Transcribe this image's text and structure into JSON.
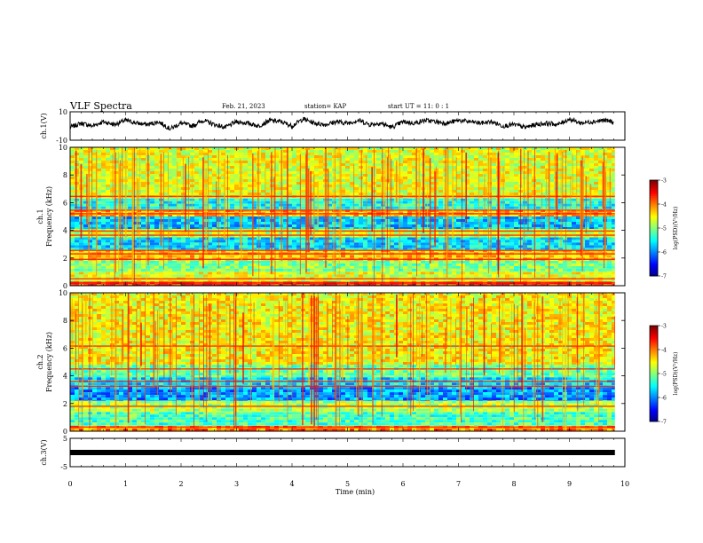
{
  "header": {
    "title": "VLF Spectra",
    "date": "Feb. 21, 2023",
    "station": "station= KAP",
    "start": "start  UT  =   11: 0  : 1"
  },
  "chart_data": [
    {
      "id": "ch1-waveform",
      "type": "line",
      "ylabel": "ch.1(V)",
      "xlim": [
        0,
        10
      ],
      "ylim": [
        -10,
        10
      ],
      "yticks": [
        "10",
        "-10"
      ],
      "x_end": 9.82,
      "series": [
        {
          "color": "#000000",
          "x": [
            0,
            0.2,
            0.4,
            0.6,
            0.8,
            1.0,
            1.2,
            1.4,
            1.6,
            1.8,
            2.0,
            2.2,
            2.4,
            2.6,
            2.8,
            3.0,
            3.2,
            3.4,
            3.6,
            3.8,
            4.0,
            4.2,
            4.4,
            4.6,
            4.8,
            5.0,
            5.2,
            5.4,
            5.6,
            5.8,
            6.0,
            6.2,
            6.4,
            6.6,
            6.8,
            7.0,
            7.2,
            7.4,
            7.6,
            7.8,
            8.0,
            8.2,
            8.4,
            8.6,
            8.8,
            9.0,
            9.2,
            9.4,
            9.6,
            9.8
          ],
          "y": [
            -1,
            2,
            0,
            3,
            1,
            4,
            2,
            1,
            3,
            -2,
            2,
            0,
            4,
            1,
            -1,
            3,
            2,
            0,
            4,
            3,
            0,
            5,
            2,
            1,
            3,
            2,
            4,
            1,
            2,
            -1,
            3,
            2,
            4,
            3,
            2,
            4,
            3,
            2,
            3,
            0,
            1,
            -1,
            1,
            2,
            1,
            5,
            2,
            3,
            4,
            3
          ]
        }
      ]
    },
    {
      "id": "ch1-spectrogram",
      "type": "heatmap",
      "ylabel_top": "ch.1",
      "ylabel": "Frequency (kHz)",
      "xlim": [
        0,
        10
      ],
      "ylim": [
        0,
        10
      ],
      "yticks": [
        "0",
        "2",
        "4",
        "6",
        "8",
        "10"
      ],
      "x_end": 9.82,
      "bands": [
        {
          "kHz": [
            0.0,
            0.3
          ],
          "level": -3.6
        },
        {
          "kHz": [
            0.3,
            1.0
          ],
          "level": -4.6
        },
        {
          "kHz": [
            1.0,
            1.8
          ],
          "level": -5.0
        },
        {
          "kHz": [
            1.8,
            2.6
          ],
          "level": -4.3
        },
        {
          "kHz": [
            2.6,
            3.5
          ],
          "level": -5.6
        },
        {
          "kHz": [
            3.5,
            4.1
          ],
          "level": -4.7
        },
        {
          "kHz": [
            4.1,
            5.0
          ],
          "level": -5.7
        },
        {
          "kHz": [
            5.0,
            5.5
          ],
          "level": -4.2
        },
        {
          "kHz": [
            5.5,
            6.3
          ],
          "level": -5.4
        },
        {
          "kHz": [
            6.3,
            10.0
          ],
          "level": -4.6
        }
      ],
      "lines_kHz": [
        0.2,
        0.5,
        1.9,
        2.3,
        2.55,
        3.65,
        3.95,
        5.2,
        5.45,
        6.45
      ],
      "colorbar": {
        "label": "log(PSD)(V²/Hz)",
        "range": [
          -7,
          -3
        ],
        "ticks": [
          "-3",
          "-4",
          "-5",
          "-6",
          "-7"
        ]
      }
    },
    {
      "id": "ch2-spectrogram",
      "type": "heatmap",
      "ylabel_top": "ch.2",
      "ylabel": "Frequency (kHz)",
      "xlim": [
        0,
        10
      ],
      "ylim": [
        0,
        10
      ],
      "yticks": [
        "0",
        "2",
        "4",
        "6",
        "8",
        "10"
      ],
      "x_end": 9.82,
      "bands": [
        {
          "kHz": [
            0.0,
            0.4
          ],
          "level": -4.0
        },
        {
          "kHz": [
            0.4,
            1.4
          ],
          "level": -5.2
        },
        {
          "kHz": [
            1.4,
            2.2
          ],
          "level": -4.8
        },
        {
          "kHz": [
            2.2,
            3.2
          ],
          "level": -5.9
        },
        {
          "kHz": [
            3.2,
            3.9
          ],
          "level": -5.6
        },
        {
          "kHz": [
            3.9,
            4.8
          ],
          "level": -5.1
        },
        {
          "kHz": [
            4.8,
            10.0
          ],
          "level": -4.5
        }
      ],
      "lines_kHz": [
        0.3,
        1.8,
        3.25,
        3.6,
        4.5,
        6.15
      ],
      "colorbar": {
        "label": "log(PSD)(V²/Hz)",
        "range": [
          -7,
          -3
        ],
        "ticks": [
          "-3",
          "-4",
          "-5",
          "-6",
          "-7"
        ]
      }
    },
    {
      "id": "ch3-waveform",
      "type": "line",
      "ylabel": "ch.3(V)",
      "xlim": [
        0,
        10
      ],
      "ylim": [
        -5,
        5
      ],
      "yticks": [
        "5",
        "-5"
      ],
      "x_end": 9.82,
      "series": [
        {
          "color": "#000000",
          "x": [
            0,
            9.82
          ],
          "y": [
            0,
            0
          ]
        }
      ]
    }
  ],
  "xaxis": {
    "label": "Time (min)",
    "ticks": [
      "0",
      "1",
      "2",
      "3",
      "4",
      "5",
      "6",
      "7",
      "8",
      "9",
      "10"
    ]
  }
}
